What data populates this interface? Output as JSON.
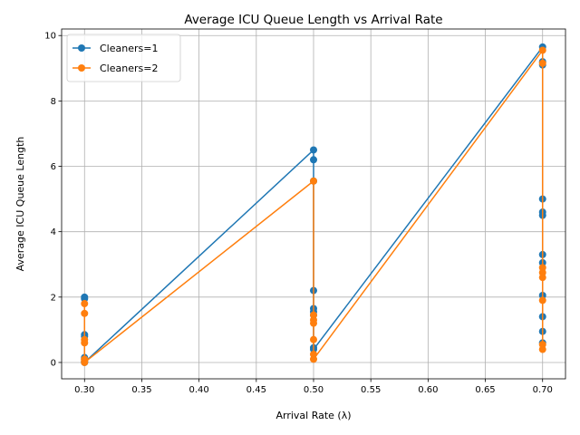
{
  "chart_data": {
    "type": "line",
    "title": "Average ICU Queue Length vs Arrival Rate",
    "xlabel": "Arrival Rate (λ)",
    "ylabel": "Average ICU Queue Length",
    "xlim": [
      0.28,
      0.72
    ],
    "ylim": [
      -0.5,
      10.2
    ],
    "xticks": [
      0.3,
      0.35,
      0.4,
      0.45,
      0.5,
      0.55,
      0.6,
      0.65,
      0.7
    ],
    "xtick_labels": [
      "0.30",
      "0.35",
      "0.40",
      "0.45",
      "0.50",
      "0.55",
      "0.60",
      "0.65",
      "0.70"
    ],
    "yticks": [
      0,
      2,
      4,
      6,
      8,
      10
    ],
    "ytick_labels": [
      "0",
      "2",
      "4",
      "6",
      "8",
      "10"
    ],
    "grid": true,
    "legend_position": "top-left",
    "series": [
      {
        "name": "Cleaners=1",
        "color": "#1f77b4",
        "points": [
          [
            0.3,
            2.0
          ],
          [
            0.3,
            1.95
          ],
          [
            0.3,
            0.85
          ],
          [
            0.3,
            0.8
          ],
          [
            0.3,
            0.15
          ],
          [
            0.3,
            0.1
          ],
          [
            0.3,
            0.02
          ],
          [
            0.3,
            0.0
          ],
          [
            0.5,
            6.5
          ],
          [
            0.5,
            6.2
          ],
          [
            0.5,
            5.55
          ],
          [
            0.5,
            2.2
          ],
          [
            0.5,
            1.65
          ],
          [
            0.5,
            1.55
          ],
          [
            0.5,
            1.45
          ],
          [
            0.5,
            0.45
          ],
          [
            0.5,
            0.4
          ],
          [
            0.7,
            9.65
          ],
          [
            0.7,
            9.2
          ],
          [
            0.7,
            9.1
          ],
          [
            0.7,
            5.0
          ],
          [
            0.7,
            4.6
          ],
          [
            0.7,
            4.5
          ],
          [
            0.7,
            3.3
          ],
          [
            0.7,
            3.05
          ],
          [
            0.7,
            2.05
          ],
          [
            0.7,
            1.4
          ],
          [
            0.7,
            0.95
          ],
          [
            0.7,
            0.6
          ]
        ]
      },
      {
        "name": "Cleaners=2",
        "color": "#ff7f0e",
        "points": [
          [
            0.3,
            1.8
          ],
          [
            0.3,
            1.5
          ],
          [
            0.3,
            0.7
          ],
          [
            0.3,
            0.6
          ],
          [
            0.3,
            0.1
          ],
          [
            0.3,
            0.05
          ],
          [
            0.3,
            0.0
          ],
          [
            0.5,
            5.55
          ],
          [
            0.5,
            1.45
          ],
          [
            0.5,
            1.3
          ],
          [
            0.5,
            1.2
          ],
          [
            0.5,
            0.7
          ],
          [
            0.5,
            0.25
          ],
          [
            0.5,
            0.1
          ],
          [
            0.7,
            9.55
          ],
          [
            0.7,
            9.15
          ],
          [
            0.7,
            2.9
          ],
          [
            0.7,
            2.75
          ],
          [
            0.7,
            2.6
          ],
          [
            0.7,
            1.9
          ],
          [
            0.7,
            0.55
          ],
          [
            0.7,
            0.4
          ]
        ]
      }
    ]
  }
}
